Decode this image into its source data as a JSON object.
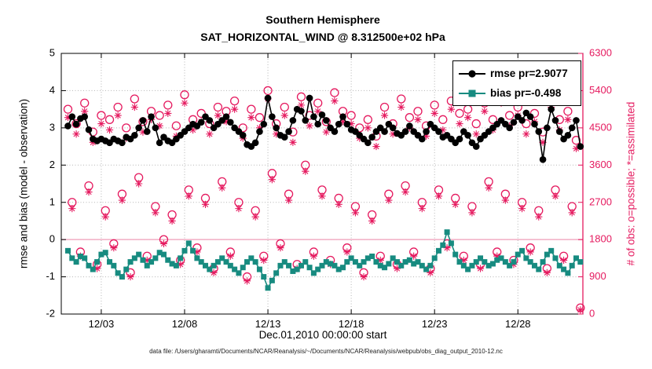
{
  "chart_data": {
    "type": "line",
    "title": "Southern Hemisphere",
    "subtitle": "SAT_HORIZONTAL_WIND @ 8.312500e+02 hPa",
    "xlabel": "Dec.01,2010 00:00:00 start",
    "ylabel_left": "rmse and bias (model - observation)",
    "ylabel_right": "# of obs: o=possible; *=assimilated",
    "footer_caption": "data file: /Users/gharamti/Documents/NCAR/Reanalysis/~/Documents/NCAR/Reanalysis/webpub/obs_diag_output_2010-12.nc",
    "grid": true,
    "xlim": [
      0.6,
      31.9
    ],
    "x_tick_values": [
      3,
      8,
      13,
      18,
      23,
      28
    ],
    "x_tick_labels": [
      "12/03",
      "12/08",
      "12/13",
      "12/18",
      "12/23",
      "12/28"
    ],
    "ylim_left": [
      -2,
      5
    ],
    "y_ticks_left": [
      -2,
      -1,
      0,
      1,
      2,
      3,
      4,
      5
    ],
    "ylim_right": [
      0,
      6300
    ],
    "y_ticks_right": [
      0,
      900,
      1800,
      2700,
      3600,
      4500,
      5400,
      6300
    ],
    "colors": {
      "rmse": "#000000",
      "bias": "#178b80",
      "obs": "#e51a5f",
      "right_axis": "#e51a5f",
      "zero_line": "#f2aec4",
      "grid": "#b5b5b5",
      "axis": "#000000"
    },
    "legend": {
      "position": "top-right-inside",
      "entries": [
        {
          "label": "rmse pr=2.9077",
          "series": "rmse",
          "marker": "filled-circle",
          "color": "#000000"
        },
        {
          "label": "bias pr=-0.498",
          "series": "bias",
          "marker": "filled-square",
          "color": "#178b80"
        }
      ]
    },
    "x_days": [
      1,
      1.25,
      1.5,
      1.75,
      2,
      2.25,
      2.5,
      2.75,
      3,
      3.25,
      3.5,
      3.75,
      4,
      4.25,
      4.5,
      4.75,
      5,
      5.25,
      5.5,
      5.75,
      6,
      6.25,
      6.5,
      6.75,
      7,
      7.25,
      7.5,
      7.75,
      8,
      8.25,
      8.5,
      8.75,
      9,
      9.25,
      9.5,
      9.75,
      10,
      10.25,
      10.5,
      10.75,
      11,
      11.25,
      11.5,
      11.75,
      12,
      12.25,
      12.5,
      12.75,
      13,
      13.25,
      13.5,
      13.75,
      14,
      14.25,
      14.5,
      14.75,
      15,
      15.25,
      15.5,
      15.75,
      16,
      16.25,
      16.5,
      16.75,
      17,
      17.25,
      17.5,
      17.75,
      18,
      18.25,
      18.5,
      18.75,
      19,
      19.25,
      19.5,
      19.75,
      20,
      20.25,
      20.5,
      20.75,
      21,
      21.25,
      21.5,
      21.75,
      22,
      22.25,
      22.5,
      22.75,
      23,
      23.25,
      23.5,
      23.75,
      24,
      24.25,
      24.5,
      24.75,
      25,
      25.25,
      25.5,
      25.75,
      26,
      26.25,
      26.5,
      26.75,
      27,
      27.25,
      27.5,
      27.75,
      28,
      28.25,
      28.5,
      28.75,
      29,
      29.25,
      29.5,
      29.75,
      30,
      30.25,
      30.5,
      30.75,
      31,
      31.25,
      31.5,
      31.75
    ],
    "series": [
      {
        "name": "rmse",
        "axis": "left",
        "color": "#000000",
        "marker": "filled-circle",
        "line": true,
        "values": [
          3.05,
          3.3,
          3.1,
          3.25,
          3.3,
          2.95,
          2.7,
          2.65,
          2.7,
          2.65,
          2.6,
          2.7,
          2.65,
          2.6,
          2.75,
          2.7,
          2.8,
          3.0,
          3.2,
          2.9,
          3.3,
          3.0,
          2.6,
          2.75,
          2.65,
          2.6,
          2.7,
          2.8,
          2.9,
          3.0,
          3.1,
          3.05,
          3.15,
          3.3,
          3.2,
          3.0,
          3.1,
          3.2,
          3.3,
          3.15,
          3.0,
          2.9,
          2.8,
          2.55,
          2.5,
          2.6,
          2.9,
          3.1,
          3.8,
          3.3,
          3.0,
          2.8,
          2.75,
          2.9,
          3.2,
          3.5,
          3.45,
          3.2,
          3.8,
          3.3,
          3.1,
          3.35,
          3.2,
          3.0,
          2.9,
          3.1,
          3.3,
          3.1,
          2.95,
          2.9,
          2.8,
          2.7,
          2.6,
          2.75,
          2.9,
          3.0,
          2.9,
          3.1,
          3.0,
          2.85,
          2.8,
          2.9,
          3.05,
          2.9,
          2.8,
          2.7,
          2.9,
          3.1,
          3.0,
          2.9,
          2.75,
          2.8,
          2.7,
          2.6,
          2.7,
          2.9,
          2.8,
          2.6,
          2.5,
          2.7,
          2.8,
          2.9,
          3.0,
          3.1,
          3.2,
          3.1,
          3.0,
          3.15,
          3.3,
          3.2,
          3.4,
          3.3,
          3.1,
          2.9,
          2.15,
          3.0,
          3.5,
          3.2,
          2.9,
          2.7,
          2.8,
          3.0,
          3.2,
          2.5
        ]
      },
      {
        "name": "bias",
        "axis": "left",
        "color": "#178b80",
        "marker": "filled-square",
        "line": true,
        "values": [
          -0.3,
          -0.5,
          -0.6,
          -0.45,
          -0.5,
          -0.7,
          -0.8,
          -0.6,
          -0.4,
          -0.35,
          -0.6,
          -0.7,
          -0.9,
          -1.0,
          -0.8,
          -0.6,
          -0.5,
          -0.4,
          -0.55,
          -0.7,
          -0.6,
          -0.5,
          -0.35,
          -0.4,
          -0.55,
          -0.65,
          -0.7,
          -0.5,
          -0.3,
          -0.1,
          -0.3,
          -0.5,
          -0.6,
          -0.7,
          -0.8,
          -0.7,
          -0.6,
          -0.5,
          -0.6,
          -0.7,
          -0.8,
          -0.9,
          -0.75,
          -0.6,
          -0.5,
          -0.6,
          -0.8,
          -1.0,
          -1.3,
          -1.1,
          -0.9,
          -0.7,
          -0.6,
          -0.7,
          -0.85,
          -0.8,
          -0.7,
          -0.6,
          -0.75,
          -0.9,
          -0.8,
          -0.7,
          -0.6,
          -0.65,
          -0.7,
          -0.8,
          -0.75,
          -0.6,
          -0.5,
          -0.6,
          -0.7,
          -0.6,
          -0.5,
          -0.45,
          -0.6,
          -0.7,
          -0.75,
          -0.65,
          -0.5,
          -0.6,
          -0.7,
          -0.6,
          -0.55,
          -0.65,
          -0.6,
          -0.7,
          -0.8,
          -0.7,
          -0.5,
          -0.3,
          -0.15,
          0.2,
          -0.1,
          -0.4,
          -0.6,
          -0.7,
          -0.8,
          -0.7,
          -0.6,
          -0.5,
          -0.6,
          -0.7,
          -0.65,
          -0.55,
          -0.5,
          -0.6,
          -0.7,
          -0.6,
          -0.4,
          -0.3,
          -0.5,
          -0.6,
          -0.7,
          -0.8,
          -0.6,
          -0.4,
          -0.3,
          -0.5,
          -0.7,
          -0.8,
          -0.9,
          -0.7,
          -0.5,
          -0.6
        ]
      },
      {
        "name": "n_possible",
        "axis": "right",
        "color": "#e51a5f",
        "marker": "open-circle",
        "line": false,
        "values": [
          4950,
          2700,
          4600,
          1500,
          5100,
          3100,
          4400,
          1200,
          4800,
          2500,
          4700,
          1700,
          5000,
          2900,
          4500,
          1000,
          5200,
          3300,
          4650,
          1400,
          4900,
          2600,
          4800,
          1800,
          5050,
          2400,
          4550,
          1300,
          5300,
          3000,
          4700,
          1600,
          4850,
          2800,
          4600,
          1100,
          5000,
          3200,
          4900,
          1500,
          5150,
          2700,
          4500,
          900,
          4950,
          2500,
          4750,
          1400,
          5400,
          3400,
          4600,
          1700,
          5000,
          2900,
          4400,
          1200,
          5250,
          3600,
          4800,
          1500,
          5100,
          3000,
          4650,
          1300,
          5350,
          2800,
          4900,
          1600,
          4800,
          2600,
          4500,
          1000,
          4700,
          2400,
          4300,
          1400,
          5000,
          2900,
          4600,
          1200,
          5200,
          3100,
          4750,
          1500,
          4900,
          2700,
          4550,
          1100,
          5050,
          3000,
          4700,
          1700,
          5150,
          2800,
          4850,
          1400,
          4950,
          2600,
          4600,
          1200,
          5100,
          3200,
          4700,
          1500,
          5300,
          2900,
          4800,
          1300,
          5000,
          2700,
          4600,
          1600,
          4850,
          2500,
          4400,
          1100,
          5200,
          3000,
          4700,
          1400,
          4900,
          2600,
          4200,
          150
        ]
      },
      {
        "name": "n_assimilated",
        "axis": "right",
        "color": "#e51a5f",
        "marker": "asterisk",
        "line": false,
        "values": [
          4750,
          2550,
          4350,
          1400,
          4900,
          2950,
          4150,
          1100,
          4600,
          2350,
          4450,
          1600,
          4800,
          2750,
          4250,
          900,
          5000,
          3150,
          4400,
          1300,
          4700,
          2450,
          4550,
          1700,
          4850,
          2250,
          4300,
          1200,
          5100,
          2850,
          4450,
          1500,
          4650,
          2650,
          4350,
          1000,
          4800,
          3050,
          4650,
          1400,
          4950,
          2550,
          4250,
          800,
          4750,
          2350,
          4500,
          1300,
          5200,
          3250,
          4350,
          1600,
          4800,
          2750,
          4150,
          1100,
          5050,
          3450,
          4550,
          1400,
          4900,
          2850,
          4400,
          1200,
          5150,
          2650,
          4650,
          1500,
          4600,
          2450,
          4250,
          900,
          4500,
          2250,
          4050,
          1300,
          4800,
          2750,
          4350,
          1100,
          5000,
          2950,
          4500,
          1400,
          4700,
          2550,
          4300,
          1000,
          4850,
          2850,
          4450,
          1600,
          4950,
          2650,
          4600,
          1300,
          4750,
          2450,
          4350,
          1100,
          4900,
          3050,
          4450,
          1400,
          5100,
          2750,
          4550,
          1200,
          4800,
          2550,
          4350,
          1500,
          4650,
          2350,
          4150,
          1000,
          5000,
          2850,
          4450,
          1300,
          4700,
          2450,
          4000,
          100
        ]
      }
    ]
  }
}
